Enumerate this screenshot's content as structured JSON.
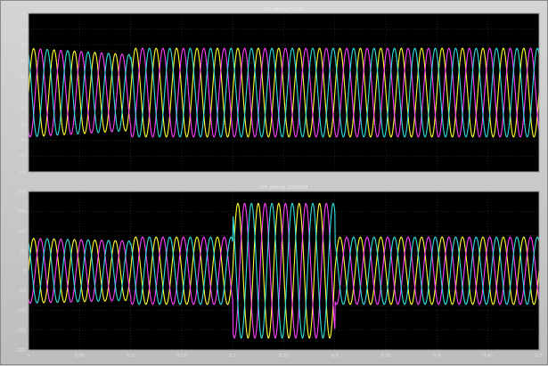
{
  "window": {
    "background": "#c8c8c8",
    "plot_background": "#000000",
    "grid_color": "#3c3c3c"
  },
  "chart_data": [
    {
      "type": "line",
      "title": "O/P without FACTS",
      "xlim": [
        0,
        0.5
      ],
      "ylim": [
        -50,
        50
      ],
      "y_ticks": [
        "50",
        "40",
        "30",
        "20",
        "10",
        "0",
        "-10",
        "-20",
        "-30",
        "-40",
        "-50"
      ],
      "frequency_hz": 50,
      "phase_angles_deg": [
        0,
        -120,
        120
      ],
      "series_colors": [
        "#ffff30",
        "#ff40ff",
        "#30e0e0"
      ],
      "segments": [
        {
          "t_start": 0.0,
          "t_end": 0.1,
          "amplitude_start": 28,
          "amplitude_end": 24
        },
        {
          "t_start": 0.1,
          "t_end": 0.5,
          "amplitude_start": 28,
          "amplitude_end": 28
        }
      ]
    },
    {
      "type": "line",
      "title": "O/P without STATCOM",
      "xlim": [
        0,
        0.5
      ],
      "ylim": [
        -200,
        200
      ],
      "y_ticks": [
        "200",
        "150",
        "100",
        "50",
        "0",
        "-50",
        "-100",
        "-150",
        "-200"
      ],
      "x_ticks": [
        "0",
        "0.05",
        "0.1",
        "0.15",
        "0.2",
        "0.25",
        "0.3",
        "0.35",
        "0.4",
        "0.45",
        "0.5"
      ],
      "frequency_hz": 50,
      "phase_angles_deg": [
        0,
        -120,
        120
      ],
      "series_colors": [
        "#ffff30",
        "#ff40ff",
        "#30e0e0"
      ],
      "segments": [
        {
          "t_start": 0.0,
          "t_end": 0.1,
          "amplitude_start": 82,
          "amplitude_end": 75
        },
        {
          "t_start": 0.1,
          "t_end": 0.2,
          "amplitude_start": 85,
          "amplitude_end": 85
        },
        {
          "t_start": 0.2,
          "t_end": 0.3,
          "amplitude_start": 170,
          "amplitude_end": 170
        },
        {
          "t_start": 0.3,
          "t_end": 0.5,
          "amplitude_start": 85,
          "amplitude_end": 85
        }
      ]
    }
  ]
}
